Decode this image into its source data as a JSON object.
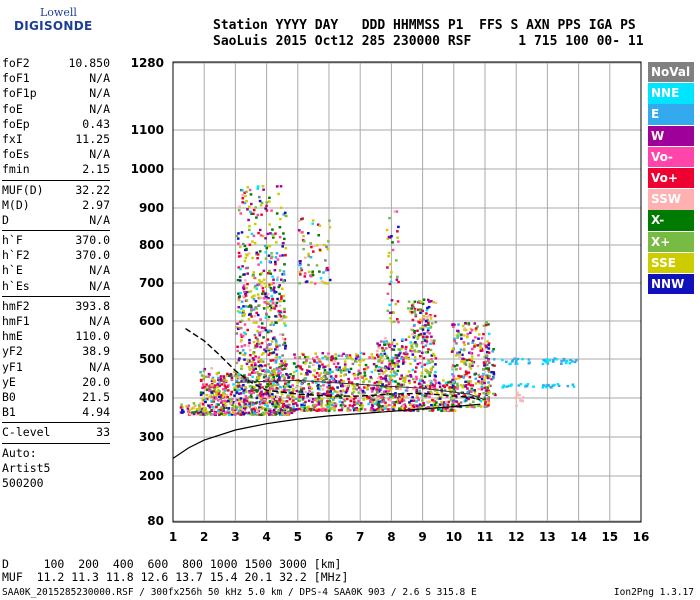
{
  "logo": {
    "line1": "Lowell",
    "line2": "DIGISONDE"
  },
  "header": {
    "labels": [
      "Station",
      "YYYY",
      "DAY",
      "DDD",
      "HHMMSS",
      "P1",
      "FFS",
      "S",
      "AXN",
      "PPS",
      "IGA",
      "PS"
    ],
    "values": [
      "SaoLuis",
      "2015",
      "Oct12",
      "285",
      "230000",
      "RSF",
      "1",
      "715",
      "100",
      "00-",
      "11"
    ]
  },
  "params": {
    "group1": [
      {
        "name": "foF2",
        "value": "10.850"
      },
      {
        "name": "foF1",
        "value": "N/A"
      },
      {
        "name": "foF1p",
        "value": "N/A"
      },
      {
        "name": "foE",
        "value": "N/A"
      },
      {
        "name": "foEp",
        "value": "0.43"
      },
      {
        "name": "fxI",
        "value": "11.25"
      },
      {
        "name": "foEs",
        "value": "N/A"
      },
      {
        "name": "fmin",
        "value": "2.15"
      }
    ],
    "group2": [
      {
        "name": "MUF(D)",
        "value": "32.22"
      },
      {
        "name": "M(D)",
        "value": "2.97"
      },
      {
        "name": "D",
        "value": "N/A"
      }
    ],
    "group3": [
      {
        "name": "h`F",
        "value": "370.0"
      },
      {
        "name": "h`F2",
        "value": "370.0"
      },
      {
        "name": "h`E",
        "value": "N/A"
      },
      {
        "name": "h`Es",
        "value": "N/A"
      }
    ],
    "group4": [
      {
        "name": "hmF2",
        "value": "393.8"
      },
      {
        "name": "hmF1",
        "value": "N/A"
      },
      {
        "name": "hmE",
        "value": "110.0"
      },
      {
        "name": "yF2",
        "value": "38.9"
      },
      {
        "name": "yF1",
        "value": "N/A"
      },
      {
        "name": "yE",
        "value": "20.0"
      },
      {
        "name": "B0",
        "value": "21.5"
      },
      {
        "name": "B1",
        "value": "4.94"
      }
    ],
    "clevel": {
      "name": "C-level",
      "value": "33"
    },
    "auto": [
      "Auto:",
      "Artist5",
      "500200"
    ]
  },
  "legend": [
    {
      "label": "NoVal",
      "color": "#808080"
    },
    {
      "label": "NNE",
      "color": "#00e5ff"
    },
    {
      "label": "E",
      "color": "#33aaee"
    },
    {
      "label": "W",
      "color": "#a0009a"
    },
    {
      "label": "Vo-",
      "color": "#ff44aa"
    },
    {
      "label": "Vo+",
      "color": "#ee0033"
    },
    {
      "label": "SSW",
      "color": "#ffb0b0"
    },
    {
      "label": "X-",
      "color": "#007a00"
    },
    {
      "label": "X+",
      "color": "#77bb44"
    },
    {
      "label": "SSE",
      "color": "#cccc00"
    },
    {
      "label": "NNW",
      "color": "#1111bb"
    }
  ],
  "chart_data": {
    "type": "scatter",
    "x": {
      "range": [
        1,
        16
      ],
      "ticks": [
        "1",
        "2",
        "3",
        "4",
        "5",
        "6",
        "7",
        "8",
        "9",
        "10",
        "11",
        "12",
        "13",
        "14",
        "15",
        "16"
      ]
    },
    "y": {
      "range": [
        80,
        1280
      ],
      "scale": "nonlinear",
      "ticks": [
        "80",
        "200",
        "300",
        "400",
        "500",
        "600",
        "700",
        "800",
        "900",
        "1000",
        "1100",
        "1280"
      ]
    },
    "grid": true,
    "curves": {
      "trace": [
        [
          1.0,
          245
        ],
        [
          1.5,
          272
        ],
        [
          2,
          292
        ],
        [
          3,
          318
        ],
        [
          4,
          334
        ],
        [
          5,
          346
        ],
        [
          6,
          354
        ],
        [
          7,
          360
        ],
        [
          8,
          366
        ],
        [
          9,
          372
        ],
        [
          10,
          378
        ],
        [
          10.85,
          384
        ]
      ],
      "profile": [
        [
          1.4,
          580
        ],
        [
          2.0,
          548
        ],
        [
          2.5,
          510
        ],
        [
          3.0,
          470
        ],
        [
          3.5,
          440
        ],
        [
          4.0,
          420
        ],
        [
          5.0,
          410
        ],
        [
          6.0,
          405
        ],
        [
          7.0,
          405
        ],
        [
          8.0,
          410
        ],
        [
          9.0,
          412
        ],
        [
          10.0,
          405
        ],
        [
          10.5,
          402
        ],
        [
          10.85,
          395
        ]
      ],
      "fit": [
        [
          3.0,
          440
        ],
        [
          5.0,
          445
        ],
        [
          7.0,
          435
        ],
        [
          9.0,
          425
        ],
        [
          10.5,
          410
        ],
        [
          11.0,
          395
        ]
      ]
    }
  },
  "footer": {
    "d_label": "D",
    "distances": [
      "100",
      "200",
      "400",
      "600",
      "800",
      "1000",
      "1500",
      "3000",
      "[km]"
    ],
    "muf_label": "MUF",
    "mufs": [
      "11.2",
      "11.3",
      "11.8",
      "12.6",
      "13.7",
      "15.4",
      "20.1",
      "32.2",
      "[MHz]"
    ],
    "meta": "SAA0K_2015285230000.RSF / 300fx256h 50 kHz 5.0 km / DPS-4 SAA0K 903 / 2.6 S 315.8 E",
    "version": "Ion2Png 1.3.17"
  }
}
